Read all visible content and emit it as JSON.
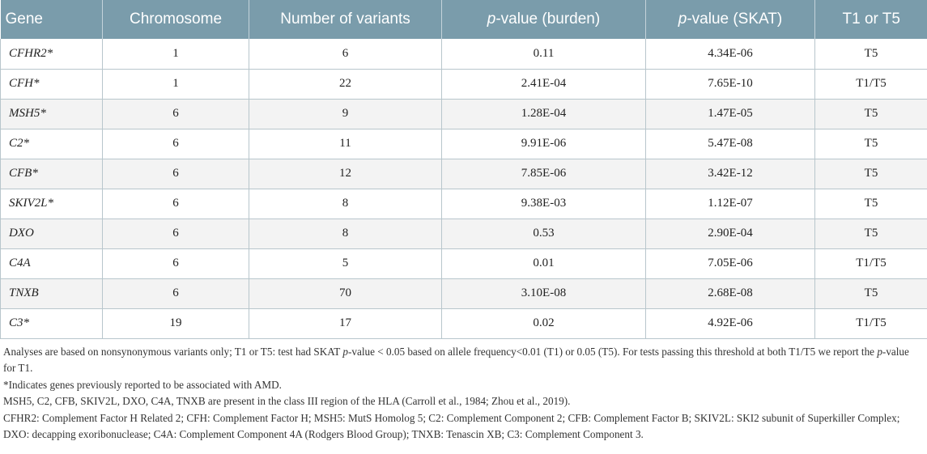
{
  "table": {
    "headers": [
      {
        "pre": "",
        "ital": "",
        "post": "Gene"
      },
      {
        "pre": "",
        "ital": "",
        "post": "Chromosome"
      },
      {
        "pre": "",
        "ital": "",
        "post": "Number of variants"
      },
      {
        "pre": "",
        "ital": "p",
        "post": "-value (burden)"
      },
      {
        "pre": "",
        "ital": "p",
        "post": "-value (SKAT)"
      },
      {
        "pre": "",
        "ital": "",
        "post": "T1 or T5"
      }
    ],
    "rows": [
      [
        "CFHR2*",
        "1",
        "6",
        "0.11",
        "4.34E-06",
        "T5"
      ],
      [
        "CFH*",
        "1",
        "22",
        "2.41E-04",
        "7.65E-10",
        "T1/T5"
      ],
      [
        "MSH5*",
        "6",
        "9",
        "1.28E-04",
        "1.47E-05",
        "T5"
      ],
      [
        "C2*",
        "6",
        "11",
        "9.91E-06",
        "5.47E-08",
        "T5"
      ],
      [
        "CFB*",
        "6",
        "12",
        "7.85E-06",
        "3.42E-12",
        "T5"
      ],
      [
        "SKIV2L*",
        "6",
        "8",
        "9.38E-03",
        "1.12E-07",
        "T5"
      ],
      [
        "DXO",
        "6",
        "8",
        "0.53",
        "2.90E-04",
        "T5"
      ],
      [
        "C4A",
        "6",
        "5",
        "0.01",
        "7.05E-06",
        "T1/T5"
      ],
      [
        "TNXB",
        "6",
        "70",
        "3.10E-08",
        "2.68E-08",
        "T5"
      ],
      [
        "C3*",
        "19",
        "17",
        "0.02",
        "4.92E-06",
        "T1/T5"
      ]
    ]
  },
  "notes": {
    "analyses": {
      "part1": "Analyses are based on nonsynonymous variants only; T1 or T5: test had SKAT ",
      "p1": "p",
      "part2": "-value < 0.05 based on allele frequency<0.01 (T1) or 0.05 (T5). For tests passing this threshold at both T1/T5 we report the ",
      "p2": "p",
      "part3": "-value for T1."
    },
    "asterisk": "*Indicates genes previously reported to be associated with AMD.",
    "hla": "MSH5, C2, CFB, SKIV2L, DXO, C4A, TNXB are present in the class III region of the HLA (Carroll et al., 1984; Zhou et al., 2019).",
    "abbreviations": "CFHR2: Complement Factor H Related 2; CFH: Complement Factor H; MSH5: MutS Homolog 5; C2: Complement Component 2; CFB: Complement Factor B; SKIV2L: SKI2 subunit of Superkiller Complex; DXO: decapping exoribonuclease; C4A: Complement Component 4A (Rodgers Blood Group); TNXB: Tenascin XB; C3: Complement Component 3."
  }
}
